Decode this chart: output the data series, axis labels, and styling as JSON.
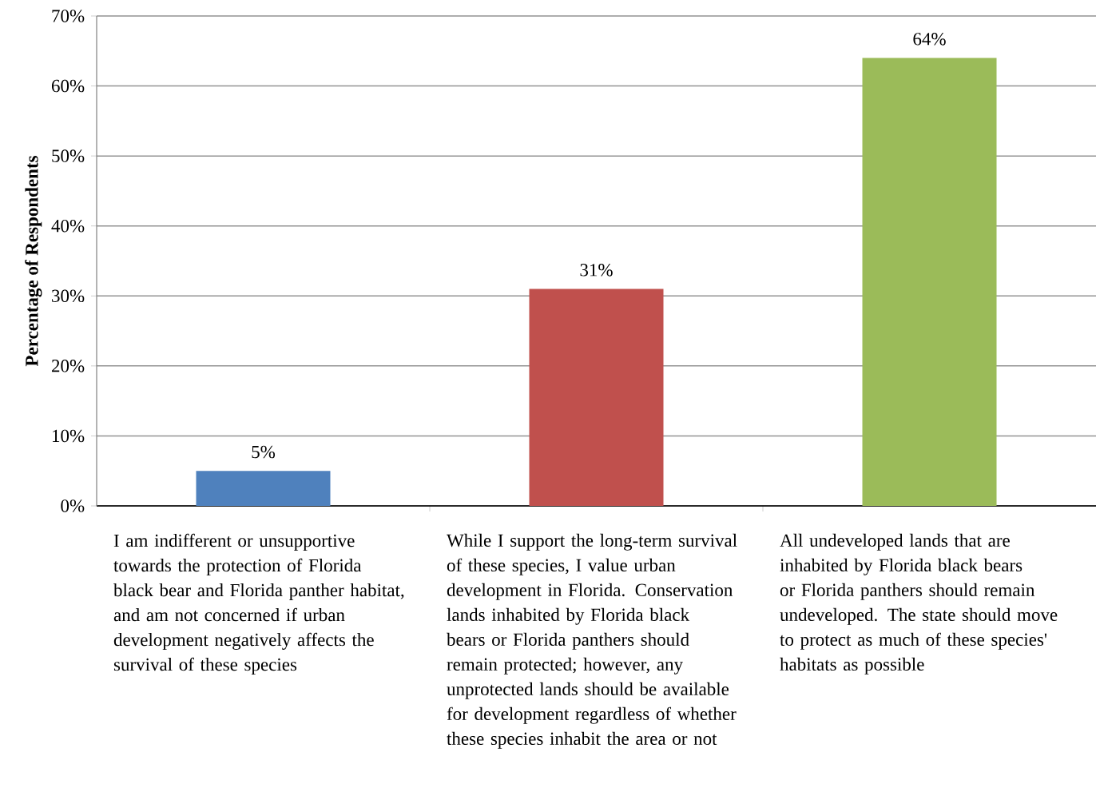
{
  "chart_data": {
    "type": "bar",
    "ylabel": "Percentage of Respondents",
    "categories": [
      "I am indifferent or unsupportive towards the protection of Florida black bear and Florida panther habitat, and am not concerned if urban development negatively affects the survival of these species",
      "While I support the long-term survival of these species, I value urban development in Florida. Conservation lands inhabited by Florida black bears or Florida panthers should remain protected; however, any unprotected lands should be available for development regardless of whether these species inhabit the area or not",
      "All undeveloped lands that are inhabited by Florida black bears or Florida panthers should remain undeveloped. The state should move to protect as much of these species' habitats as possible"
    ],
    "values": [
      5,
      31,
      64
    ],
    "colors": [
      "#4f81bd",
      "#c0504d",
      "#9bbb59"
    ],
    "value_labels": [
      "5%",
      "31%",
      "64%"
    ],
    "ylim": [
      0,
      70
    ],
    "yticks": [
      {
        "value": 0,
        "label": "0%"
      },
      {
        "value": 10,
        "label": "10%"
      },
      {
        "value": 20,
        "label": "20%"
      },
      {
        "value": 30,
        "label": "30%"
      },
      {
        "value": 40,
        "label": "40%"
      },
      {
        "value": 50,
        "label": "50%"
      },
      {
        "value": 60,
        "label": "60%"
      },
      {
        "value": 70,
        "label": "70%"
      }
    ],
    "grid": "y"
  }
}
